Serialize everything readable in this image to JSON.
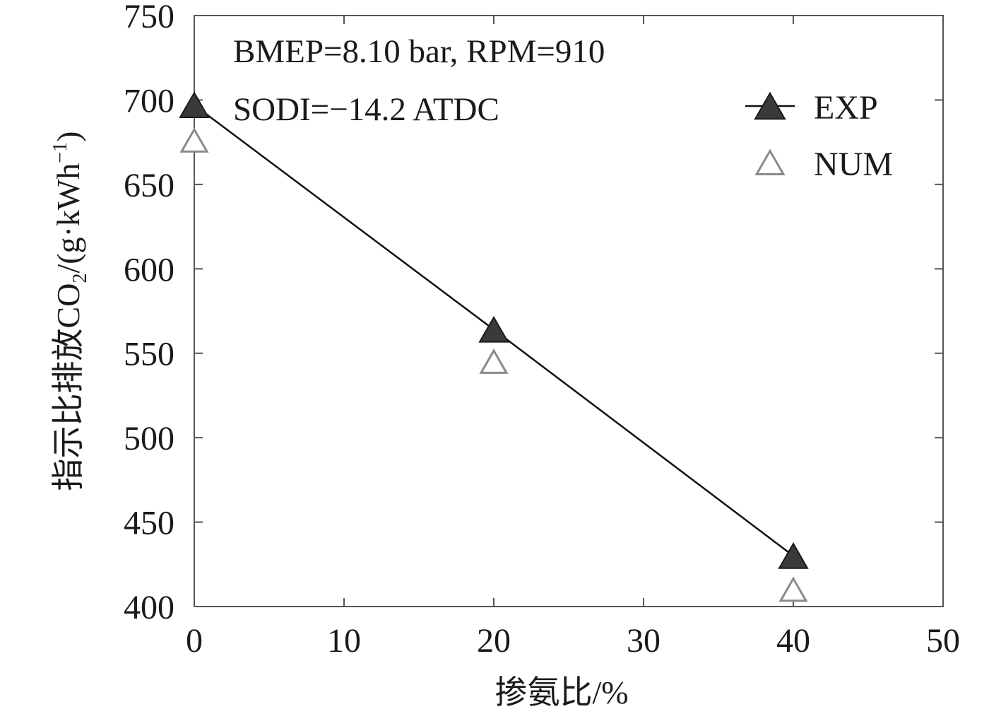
{
  "chart_data": {
    "type": "line",
    "xlabel": "掺氨比/%",
    "ylabel": {
      "prefix": "指示比排放CO",
      "subscript": "2",
      "middle": "/(g·kWh",
      "superscript": "−1",
      "suffix": ")"
    },
    "xlim": [
      0,
      50
    ],
    "ylim": [
      400,
      750
    ],
    "xticks": [
      0,
      10,
      20,
      30,
      40,
      50
    ],
    "yticks": [
      400,
      450,
      500,
      550,
      600,
      650,
      700,
      750
    ],
    "grid": false,
    "legend_position": "top-right",
    "annotations": [
      "BMEP=8.10 bar, RPM=910",
      "SODI=−14.2 ATDC"
    ],
    "series": [
      {
        "name": "EXP",
        "x": [
          0,
          20,
          40
        ],
        "y": [
          697,
          564,
          430
        ],
        "marker": "filled-triangle",
        "line": true,
        "color": "#3a3a3a"
      },
      {
        "name": "NUM",
        "x": [
          0,
          20,
          40
        ],
        "y": [
          676,
          545,
          410
        ],
        "marker": "open-triangle",
        "line": false,
        "color": "#8a8a8a"
      }
    ]
  }
}
